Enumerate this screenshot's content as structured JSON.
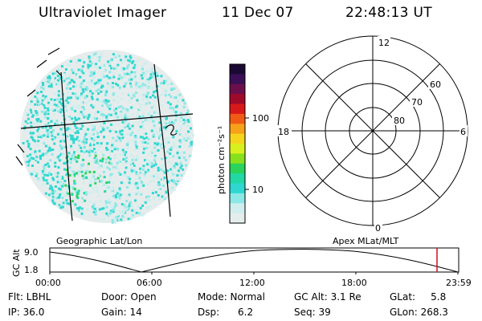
{
  "header": {
    "instrument": "Ultraviolet Imager",
    "date": "11 Dec 07",
    "time": "22:48:13 UT"
  },
  "colorbar": {
    "label": "photon cm⁻²s⁻¹",
    "ticks": [
      "100",
      "10"
    ],
    "colors": [
      "#1a0a33",
      "#3a0f55",
      "#6b0f4c",
      "#a00a2a",
      "#d8191a",
      "#f05a14",
      "#f7a01a",
      "#f5d51c",
      "#d9f01e",
      "#88e01c",
      "#2ad35a",
      "#22d8a4",
      "#2ed8d0",
      "#8ce8e6",
      "#cfeeed",
      "#e4ecec"
    ]
  },
  "polar_plot": {
    "labels": {
      "top": "12",
      "bottom": "0",
      "left": "18",
      "right": "6"
    },
    "rings": [
      "60",
      "70",
      "80"
    ]
  },
  "altitude_panel": {
    "left_label": "Geographic Lat/Lon",
    "right_label": "Apex MLat/MLT",
    "axis_label": "GC Alt",
    "y_ticks": [
      "9.0",
      "1.8"
    ],
    "x_ticks": [
      "00:00",
      "06:00",
      "12:00",
      "18:00",
      "23:59"
    ],
    "marker_color": "#d0101c"
  },
  "info": {
    "filter": "Flt: LBHL",
    "ip": "IP: 36.0",
    "door": "Door: Open",
    "gain": "Gain: 14",
    "mode": "Mode: Normal",
    "dsp": "Dsp:      6.2",
    "gc_alt": "GC Alt: 3.1 Re",
    "seq": "Seq: 39",
    "glat": "GLat:     5.8",
    "glon": "GLon: 268.3"
  }
}
